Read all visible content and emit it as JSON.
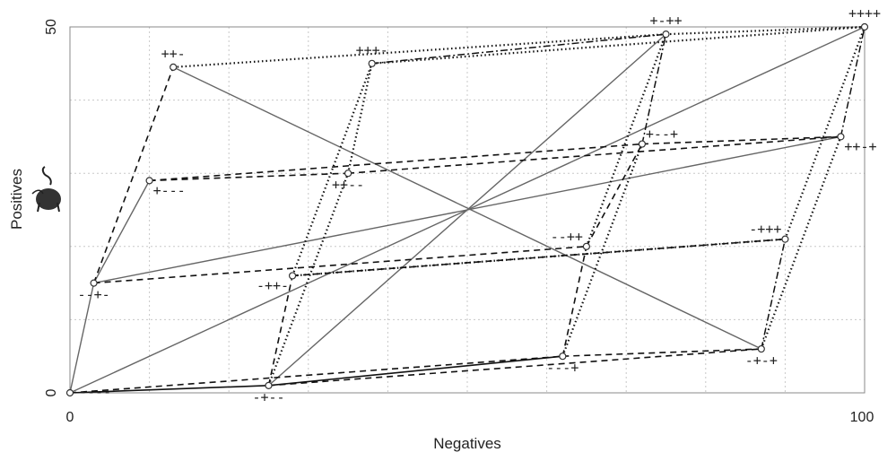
{
  "chart_data": {
    "type": "scatter",
    "xlabel": "Negatives",
    "ylabel": "Positives",
    "xlim": [
      0,
      100
    ],
    "ylim": [
      0,
      50
    ],
    "x_ticks": [
      "0",
      "100"
    ],
    "y_ticks": [
      "0",
      "50"
    ],
    "grid": true,
    "points": [
      {
        "id": "p1",
        "label": "----",
        "x": 0,
        "y": 0
      },
      {
        "id": "p2",
        "label": "--+-",
        "x": 3,
        "y": 15
      },
      {
        "id": "p3",
        "label": "+---",
        "x": 10,
        "y": 29
      },
      {
        "id": "p4",
        "label": "++-",
        "x": 13,
        "y": 44.5
      },
      {
        "id": "p5",
        "label": "-+--",
        "x": 25,
        "y": 1
      },
      {
        "id": "p6",
        "label": "-++-",
        "x": 28,
        "y": 16
      },
      {
        "id": "p7",
        "label": "++--",
        "x": 35,
        "y": 30
      },
      {
        "id": "p8",
        "label": "+++-",
        "x": 38,
        "y": 45
      },
      {
        "id": "p9",
        "label": "---+",
        "x": 62,
        "y": 5
      },
      {
        "id": "p10",
        "label": "--++",
        "x": 65,
        "y": 20
      },
      {
        "id": "p11",
        "label": "+--+",
        "x": 72,
        "y": 34
      },
      {
        "id": "p12",
        "label": "+-++",
        "x": 75,
        "y": 49
      },
      {
        "id": "p13",
        "label": "-+-+",
        "x": 87,
        "y": 6
      },
      {
        "id": "p14",
        "label": "-+++",
        "x": 90,
        "y": 21
      },
      {
        "id": "p15",
        "label": "++-+",
        "x": 97,
        "y": 35
      },
      {
        "id": "p16",
        "label": "++++",
        "x": 100,
        "y": 50
      }
    ],
    "label_positions": {
      "p1": "right",
      "p2": "below",
      "p3": "below-right",
      "p4": "above",
      "p5": "below",
      "p6": "below-left",
      "p7": "below",
      "p8": "above",
      "p9": "below",
      "p10": "above-left",
      "p11": "above-right",
      "p12": "above",
      "p13": "below",
      "p14": "above-left",
      "p15": "below-right",
      "p16": "above"
    },
    "lines": [
      {
        "from": "p1",
        "to": "p2",
        "style": "solid-light"
      },
      {
        "from": "p2",
        "to": "p3",
        "style": "solid-light"
      },
      {
        "from": "p1",
        "to": "p5",
        "style": "solid-dark"
      },
      {
        "from": "p5",
        "to": "p9",
        "style": "solid-dark"
      },
      {
        "from": "p2",
        "to": "p15",
        "style": "solid-light"
      },
      {
        "from": "p1",
        "to": "p16",
        "style": "solid-light"
      },
      {
        "from": "p4",
        "to": "p13",
        "style": "solid-light"
      },
      {
        "from": "p5",
        "to": "p12",
        "style": "solid-light"
      },
      {
        "from": "p1",
        "to": "p9",
        "style": "dashed"
      },
      {
        "from": "p5",
        "to": "p13",
        "style": "dashed"
      },
      {
        "from": "p9",
        "to": "p13",
        "style": "dashed"
      },
      {
        "from": "p2",
        "to": "p10",
        "style": "dashed"
      },
      {
        "from": "p6",
        "to": "p14",
        "style": "dashed"
      },
      {
        "from": "p3",
        "to": "p11",
        "style": "dashed"
      },
      {
        "from": "p7",
        "to": "p15",
        "style": "dashed"
      },
      {
        "from": "p2",
        "to": "p4",
        "style": "dashed"
      },
      {
        "from": "p5",
        "to": "p6",
        "style": "dashed"
      },
      {
        "from": "p9",
        "to": "p10",
        "style": "dashed"
      },
      {
        "from": "p3",
        "to": "p7",
        "style": "dashed"
      },
      {
        "from": "p11",
        "to": "p15",
        "style": "dashed"
      },
      {
        "from": "p10",
        "to": "p11",
        "style": "dashed"
      },
      {
        "from": "p6",
        "to": "p8",
        "style": "dotted"
      },
      {
        "from": "p5",
        "to": "p7",
        "style": "dotted"
      },
      {
        "from": "p7",
        "to": "p8",
        "style": "dotted"
      },
      {
        "from": "p4",
        "to": "p12",
        "style": "dotted"
      },
      {
        "from": "p8",
        "to": "p16",
        "style": "dotted"
      },
      {
        "from": "p12",
        "to": "p16",
        "style": "dotted"
      },
      {
        "from": "p10",
        "to": "p12",
        "style": "dotted"
      },
      {
        "from": "p9",
        "to": "p11",
        "style": "dotted"
      },
      {
        "from": "p13",
        "to": "p15",
        "style": "dotted"
      },
      {
        "from": "p14",
        "to": "p16",
        "style": "dotted"
      },
      {
        "from": "p6",
        "to": "p14",
        "style": "dotted"
      },
      {
        "from": "p8",
        "to": "p12",
        "style": "dashdot"
      },
      {
        "from": "p15",
        "to": "p16",
        "style": "dashdot"
      },
      {
        "from": "p13",
        "to": "p14",
        "style": "dashdot"
      },
      {
        "from": "p11",
        "to": "p12",
        "style": "dashdot"
      }
    ]
  }
}
